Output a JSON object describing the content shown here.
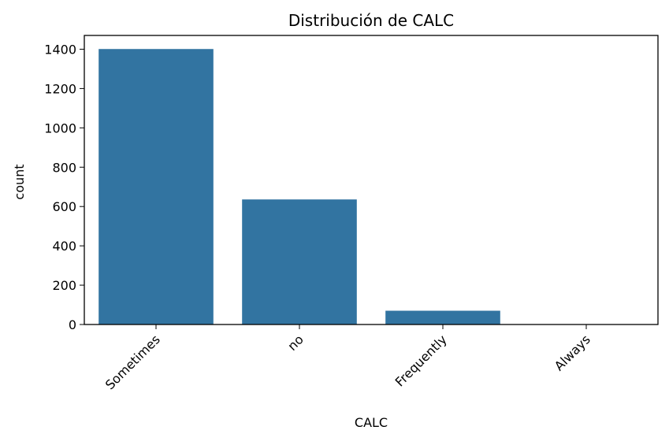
{
  "chart_data": {
    "type": "bar",
    "title": "Distribución de CALC",
    "xlabel": "CALC",
    "ylabel": "count",
    "categories": [
      "Sometimes",
      "no",
      "Frequently",
      "Always"
    ],
    "values": [
      1401,
      636,
      70,
      1
    ],
    "ylim": [
      0,
      1470
    ],
    "yticks": [
      0,
      200,
      400,
      600,
      800,
      1000,
      1200,
      1400
    ],
    "bar_color": "#3274a1",
    "grid": false,
    "xtick_rotation_deg": 45
  }
}
